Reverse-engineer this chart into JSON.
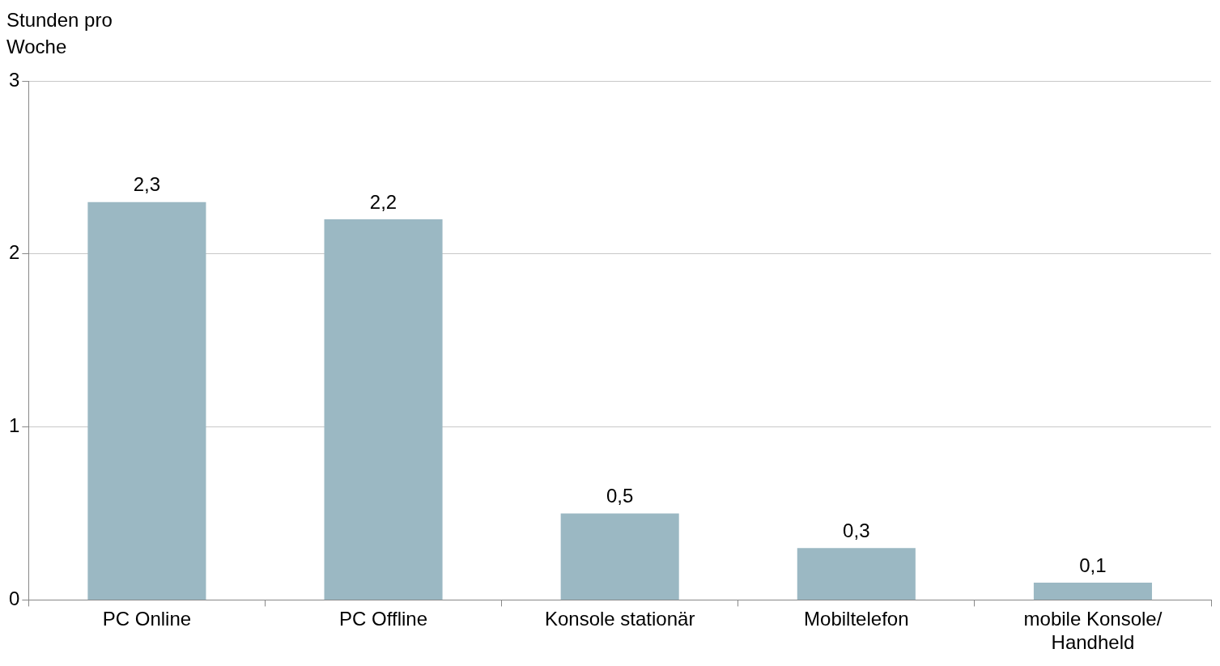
{
  "chart_data": {
    "type": "bar",
    "ylabel": "Stunden pro Woche",
    "categories": [
      "PC Online",
      "PC Offline",
      "Konsole stationär",
      "Mobiltelefon",
      "mobile Konsole/ Handheld"
    ],
    "values": [
      2.3,
      2.2,
      0.5,
      0.3,
      0.1
    ],
    "value_labels": [
      "2,3",
      "2,2",
      "0,5",
      "0,3",
      "0,1"
    ],
    "color": "#9bb8c3",
    "ylim": [
      0,
      3
    ],
    "yticks": [
      0,
      1,
      2,
      3
    ],
    "grid": "y"
  }
}
